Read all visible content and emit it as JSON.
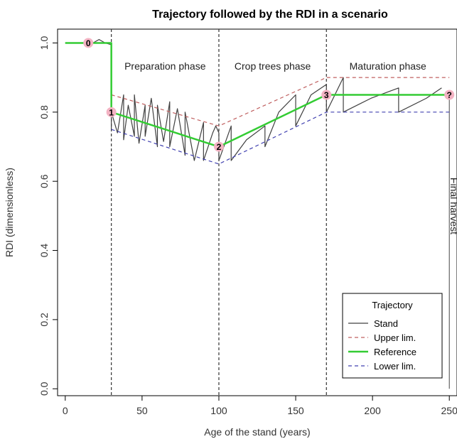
{
  "chart_data": {
    "type": "line",
    "title": "Trajectory followed by the RDI in a scenario",
    "xlabel": "Age of the stand (years)",
    "ylabel": "RDI (dimensionless)",
    "xlim": [
      -5,
      255
    ],
    "ylim": [
      -0.02,
      1.04
    ],
    "xticks": [
      0,
      50,
      100,
      150,
      200,
      250
    ],
    "yticks": [
      0.0,
      0.2,
      0.4,
      0.6,
      0.8,
      1.0
    ],
    "grid": false,
    "phase_boundaries": [
      30,
      100,
      170
    ],
    "phases": [
      {
        "label": "Preparation phase",
        "x": 65
      },
      {
        "label": "Crop trees phase",
        "x": 135
      },
      {
        "label": "Maturation phase",
        "x": 210
      }
    ],
    "annotation": {
      "text": "Final harvest",
      "x": 250
    },
    "milestones": [
      {
        "label": "0",
        "x": 15,
        "y": 1.0
      },
      {
        "label": "1",
        "x": 30,
        "y": 0.8
      },
      {
        "label": "2",
        "x": 100,
        "y": 0.7
      },
      {
        "label": "3",
        "x": 170,
        "y": 0.85
      },
      {
        "label": "?",
        "x": 250,
        "y": 0.85
      }
    ],
    "legend": {
      "title": "Trajectory",
      "position": "bottom-right"
    },
    "series": [
      {
        "name": "Stand",
        "color": "#404040",
        "dash": "solid",
        "width": 1.2,
        "x": [
          0,
          18,
          22,
          26,
          30,
          30,
          30,
          30,
          34,
          38,
          38,
          41,
          45,
          45,
          48,
          52,
          52,
          56,
          60,
          60,
          64,
          68,
          68,
          73,
          78,
          78,
          84,
          90,
          90,
          96,
          98,
          100,
          100,
          104,
          108,
          108,
          118,
          130,
          130,
          139,
          150,
          150,
          160,
          170,
          170,
          181,
          181,
          199,
          217,
          217,
          235,
          245
        ],
        "y": [
          1.0,
          1.0,
          1.01,
          1.0,
          0.995,
          1.0,
          0.75,
          0.8,
          0.74,
          0.85,
          0.72,
          0.82,
          0.73,
          0.85,
          0.71,
          0.82,
          0.73,
          0.84,
          0.7,
          0.82,
          0.715,
          0.83,
          0.7,
          0.81,
          0.675,
          0.8,
          0.66,
          0.77,
          0.66,
          0.74,
          0.76,
          0.74,
          0.66,
          0.71,
          0.76,
          0.66,
          0.72,
          0.76,
          0.7,
          0.8,
          0.85,
          0.76,
          0.85,
          0.88,
          0.8,
          0.9,
          0.8,
          0.84,
          0.87,
          0.8,
          0.84,
          0.87
        ]
      },
      {
        "name": "Upper lim.",
        "color": "#c06060",
        "dash": "dashed",
        "width": 1.2,
        "x": [
          30,
          100,
          170,
          250
        ],
        "y": [
          0.85,
          0.76,
          0.9,
          0.9
        ]
      },
      {
        "name": "Reference",
        "color": "#33cc33",
        "dash": "solid",
        "width": 2.5,
        "x": [
          0,
          30,
          30,
          100,
          170,
          250
        ],
        "y": [
          1.0,
          1.0,
          0.8,
          0.7,
          0.85,
          0.85
        ]
      },
      {
        "name": "Lower lim.",
        "color": "#4040b0",
        "dash": "dashed",
        "width": 1.2,
        "x": [
          30,
          100,
          170,
          250
        ],
        "y": [
          0.75,
          0.65,
          0.8,
          0.8
        ]
      }
    ]
  }
}
